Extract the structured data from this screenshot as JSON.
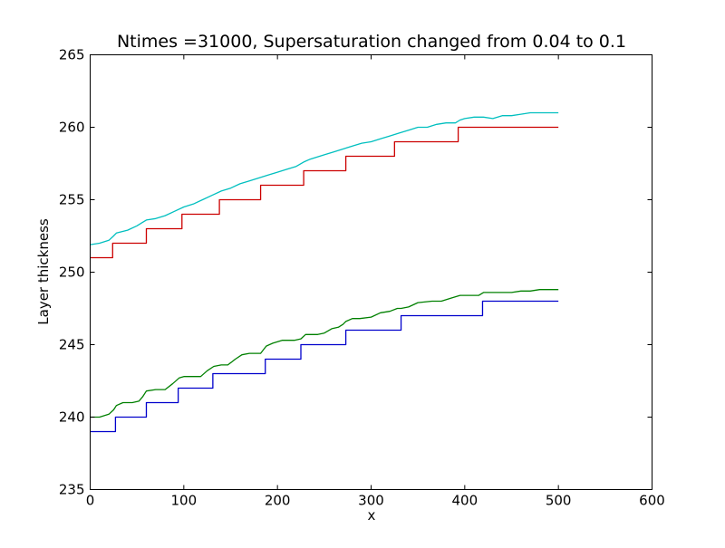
{
  "chart_data": {
    "type": "line",
    "title": "Ntimes =31000, Supersaturation changed from 0.04 to 0.1",
    "xlabel": "x",
    "ylabel": "Layer thickness",
    "xlim": [
      0,
      600
    ],
    "ylim": [
      235,
      265
    ],
    "xticks": [
      0,
      100,
      200,
      300,
      400,
      500,
      600
    ],
    "yticks": [
      235,
      240,
      245,
      250,
      255,
      260,
      265
    ],
    "grid": false,
    "legend": "none",
    "series": [
      {
        "color": "#0000cc",
        "style": "step",
        "x": [
          0,
          27,
          27,
          60,
          60,
          94,
          94,
          131,
          131,
          187,
          187,
          225,
          225,
          273,
          273,
          332,
          332,
          419,
          419,
          500
        ],
        "y": [
          239,
          239,
          240,
          240,
          241,
          241,
          242,
          242,
          243,
          243,
          244,
          244,
          245,
          245,
          246,
          246,
          247,
          247,
          248,
          248
        ]
      },
      {
        "color": "#008000",
        "style": "smooth",
        "x": [
          0,
          10,
          20,
          25,
          28,
          35,
          45,
          52,
          56,
          60,
          70,
          80,
          88,
          95,
          100,
          110,
          118,
          125,
          132,
          140,
          147,
          155,
          162,
          170,
          182,
          188,
          195,
          205,
          218,
          225,
          230,
          243,
          250,
          258,
          265,
          270,
          273,
          280,
          288,
          300,
          310,
          320,
          328,
          332,
          340,
          350,
          365,
          375,
          385,
          395,
          405,
          415,
          420,
          430,
          440,
          450,
          460,
          470,
          480,
          490,
          500
        ],
        "y": [
          240.0,
          240.0,
          240.2,
          240.5,
          240.8,
          241.0,
          241.0,
          241.1,
          241.4,
          241.8,
          241.9,
          241.9,
          242.3,
          242.7,
          242.8,
          242.8,
          242.8,
          243.2,
          243.5,
          243.6,
          243.6,
          244.0,
          244.3,
          244.4,
          244.4,
          244.9,
          245.1,
          245.3,
          245.3,
          245.4,
          245.7,
          245.7,
          245.8,
          246.1,
          246.2,
          246.4,
          246.6,
          246.8,
          246.8,
          246.9,
          247.2,
          247.3,
          247.5,
          247.5,
          247.6,
          247.9,
          248.0,
          248.0,
          248.2,
          248.4,
          248.4,
          248.4,
          248.6,
          248.6,
          248.6,
          248.6,
          248.7,
          248.7,
          248.8,
          248.8,
          248.8
        ]
      },
      {
        "color": "#cc0000",
        "style": "step",
        "x": [
          0,
          24,
          24,
          60,
          60,
          98,
          98,
          138,
          138,
          182,
          182,
          228,
          228,
          273,
          273,
          325,
          325,
          393,
          393,
          500
        ],
        "y": [
          251,
          251,
          252,
          252,
          253,
          253,
          254,
          254,
          255,
          255,
          256,
          256,
          257,
          257,
          258,
          258,
          259,
          259,
          260,
          260
        ]
      },
      {
        "color": "#00bfbf",
        "style": "smooth",
        "x": [
          0,
          10,
          20,
          25,
          28,
          40,
          50,
          55,
          60,
          70,
          80,
          90,
          100,
          110,
          120,
          130,
          140,
          150,
          160,
          170,
          180,
          190,
          200,
          210,
          220,
          228,
          235,
          250,
          260,
          270,
          280,
          290,
          300,
          310,
          320,
          330,
          340,
          350,
          360,
          370,
          380,
          390,
          395,
          400,
          410,
          420,
          430,
          440,
          450,
          460,
          470,
          480,
          490,
          500
        ],
        "y": [
          251.9,
          252.0,
          252.2,
          252.5,
          252.7,
          252.9,
          253.2,
          253.4,
          253.6,
          253.7,
          253.9,
          254.2,
          254.5,
          254.7,
          255.0,
          255.3,
          255.6,
          255.8,
          256.1,
          256.3,
          256.5,
          256.7,
          256.9,
          257.1,
          257.3,
          257.6,
          257.8,
          258.1,
          258.3,
          258.5,
          258.7,
          258.9,
          259.0,
          259.2,
          259.4,
          259.6,
          259.8,
          260.0,
          260.0,
          260.2,
          260.3,
          260.3,
          260.5,
          260.6,
          260.7,
          260.7,
          260.6,
          260.8,
          260.8,
          260.9,
          261.0,
          261.0,
          261.0,
          261.0
        ]
      }
    ]
  }
}
